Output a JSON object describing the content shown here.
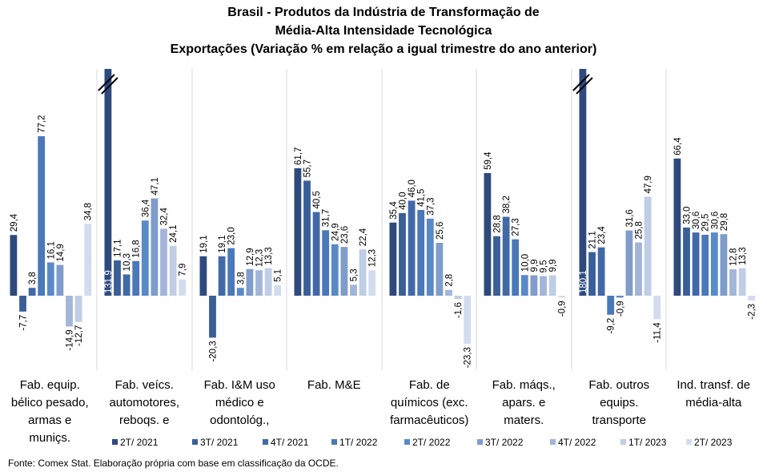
{
  "chart_data": {
    "type": "bar",
    "title": [
      "Brasil - Produtos da Indústria de Transformação de",
      "Média-Alta Intensidade Tecnológica",
      "Exportações (Variação % em relação a igual trimestre do ano anterior)"
    ],
    "xlabel": "",
    "ylabel": "",
    "grid": false,
    "legend_position": "bottom",
    "ylim": [
      -25,
      80
    ],
    "periods": [
      "2T/ 2021",
      "3T/ 2021",
      "4T/ 2021",
      "1T/ 2022",
      "2T/ 2022",
      "3T/ 2022",
      "4T/ 2022",
      "1T/ 2023",
      "2T/ 2023"
    ],
    "colors": [
      "#2e4a7d",
      "#3a5f98",
      "#4169a8",
      "#4a78b8",
      "#5a89c7",
      "#7f9ccb",
      "#a3b5d8",
      "#bfcde6",
      "#d3dcee"
    ],
    "categories": [
      {
        "label": [
          "Fab. equip.",
          "bélico pesado,",
          "armas e",
          "muniçs."
        ],
        "values": [
          "29,4",
          "-7,7",
          "3,8",
          "77,2",
          "16,1",
          "14,9",
          "-14,9",
          "-12,7",
          "34,8"
        ]
      },
      {
        "label": [
          "Fab. veícs.",
          "automotores,",
          "reboqs. e"
        ],
        "values": [
          "131,9",
          "17,1",
          "10,3",
          "16,8",
          "36,4",
          "47,1",
          "32,4",
          "24,1",
          "7,9"
        ],
        "broken_bar": 0
      },
      {
        "label": [
          "Fab. I&M uso",
          "médico e",
          "odontológ.,"
        ],
        "values": [
          "19,1",
          "-20,3",
          "19,1",
          "23,0",
          "3,8",
          "12,9",
          "12,3",
          "13,3",
          "5,1"
        ]
      },
      {
        "label": [
          "Fab. M&E"
        ],
        "values": [
          "61,7",
          "55,7",
          "40,5",
          "31,7",
          "24,9",
          "23,6",
          "5,3",
          "22,4",
          "12,3"
        ]
      },
      {
        "label": [
          "Fab. de",
          "químicos (exc.",
          "farmacêuticos)"
        ],
        "values": [
          "35,4",
          "40,0",
          "46,0",
          "41,5",
          "37,3",
          "25,6",
          "2,8",
          "-1,6",
          "-23,3"
        ]
      },
      {
        "label": [
          "Fab. máqs.,",
          "apars. e",
          "maters."
        ],
        "values": [
          "59,4",
          "28,8",
          "38,2",
          "27,3",
          "10,0",
          "9,9",
          "9,5",
          "9,9",
          "-0,9"
        ]
      },
      {
        "label": [
          "Fab. outros",
          "equips.",
          "transporte"
        ],
        "values": [
          "180,1",
          "21,1",
          "23,4",
          "-9,2",
          "-0,9",
          "31,6",
          "25,8",
          "47,9",
          "-11,4"
        ],
        "broken_bar": 0
      },
      {
        "label": [
          "Ind. transf. de",
          "média-alta"
        ],
        "values": [
          "66,4",
          "33,0",
          "30,6",
          "29,5",
          "30,6",
          "29,8",
          "12,8",
          "13,3",
          "-2,3"
        ]
      }
    ]
  },
  "source": "Fonte: Comex Stat. Elaboração própria com base em classificação da OCDE."
}
